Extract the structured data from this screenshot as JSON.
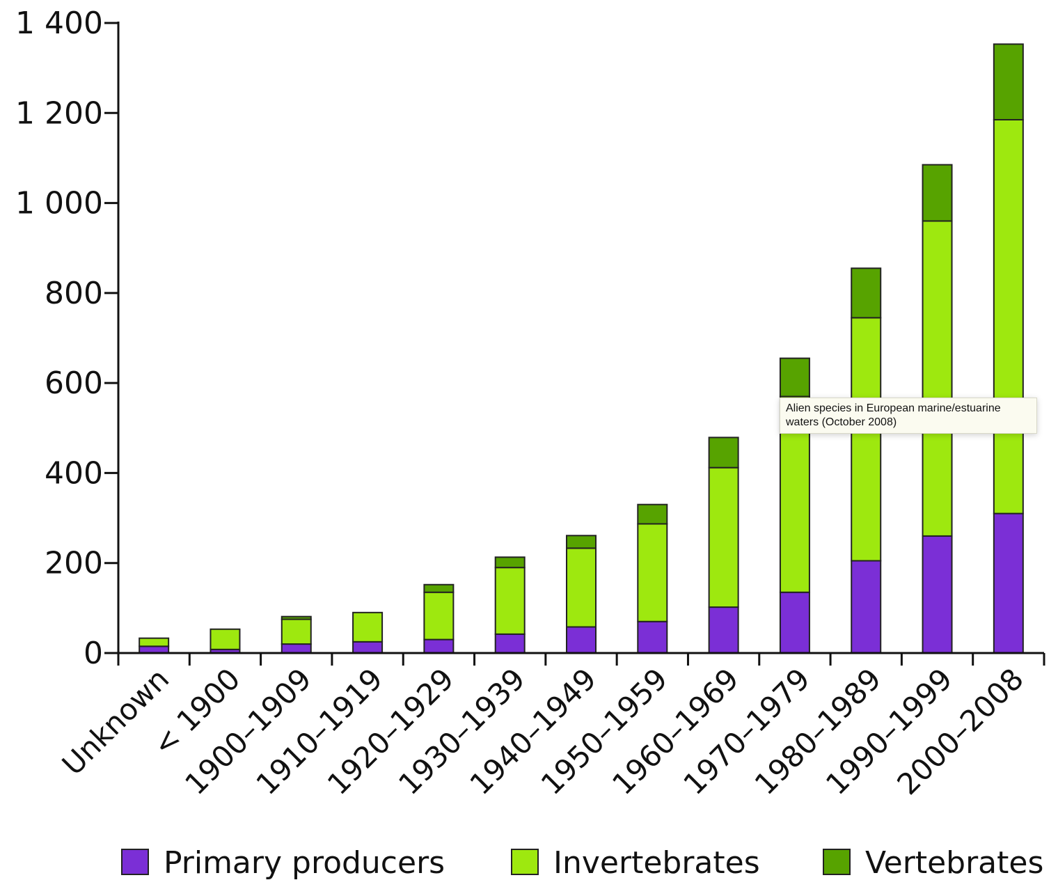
{
  "chart_data": {
    "type": "bar",
    "stacked": true,
    "categories": [
      "Unknown",
      "< 1900",
      "1900–1909",
      "1910–1919",
      "1920–1929",
      "1930–1939",
      "1940–1949",
      "1950–1959",
      "1960–1969",
      "1970–1979",
      "1980–1989",
      "1990–1999",
      "2000–2008"
    ],
    "series": [
      {
        "name": "Primary producers",
        "color": "#7b2fd6",
        "values": [
          15,
          8,
          20,
          25,
          30,
          42,
          58,
          70,
          102,
          135,
          205,
          260,
          310
        ]
      },
      {
        "name": "Invertebrates",
        "color": "#9ee80f",
        "values": [
          18,
          45,
          55,
          65,
          105,
          148,
          175,
          217,
          310,
          435,
          540,
          700,
          875
        ]
      },
      {
        "name": "Vertebrates",
        "color": "#57a300",
        "values": [
          0,
          0,
          6,
          0,
          17,
          23,
          28,
          43,
          67,
          85,
          110,
          125,
          168
        ]
      }
    ],
    "yticks": [
      "0",
      "200",
      "400",
      "600",
      "800",
      "1 000",
      "1 200",
      "1 400"
    ],
    "ylim": [
      0,
      1400
    ],
    "legend_position": "bottom",
    "grid": false
  },
  "tooltip": {
    "text": "Alien species in European marine/estuarine waters (October 2008)"
  }
}
